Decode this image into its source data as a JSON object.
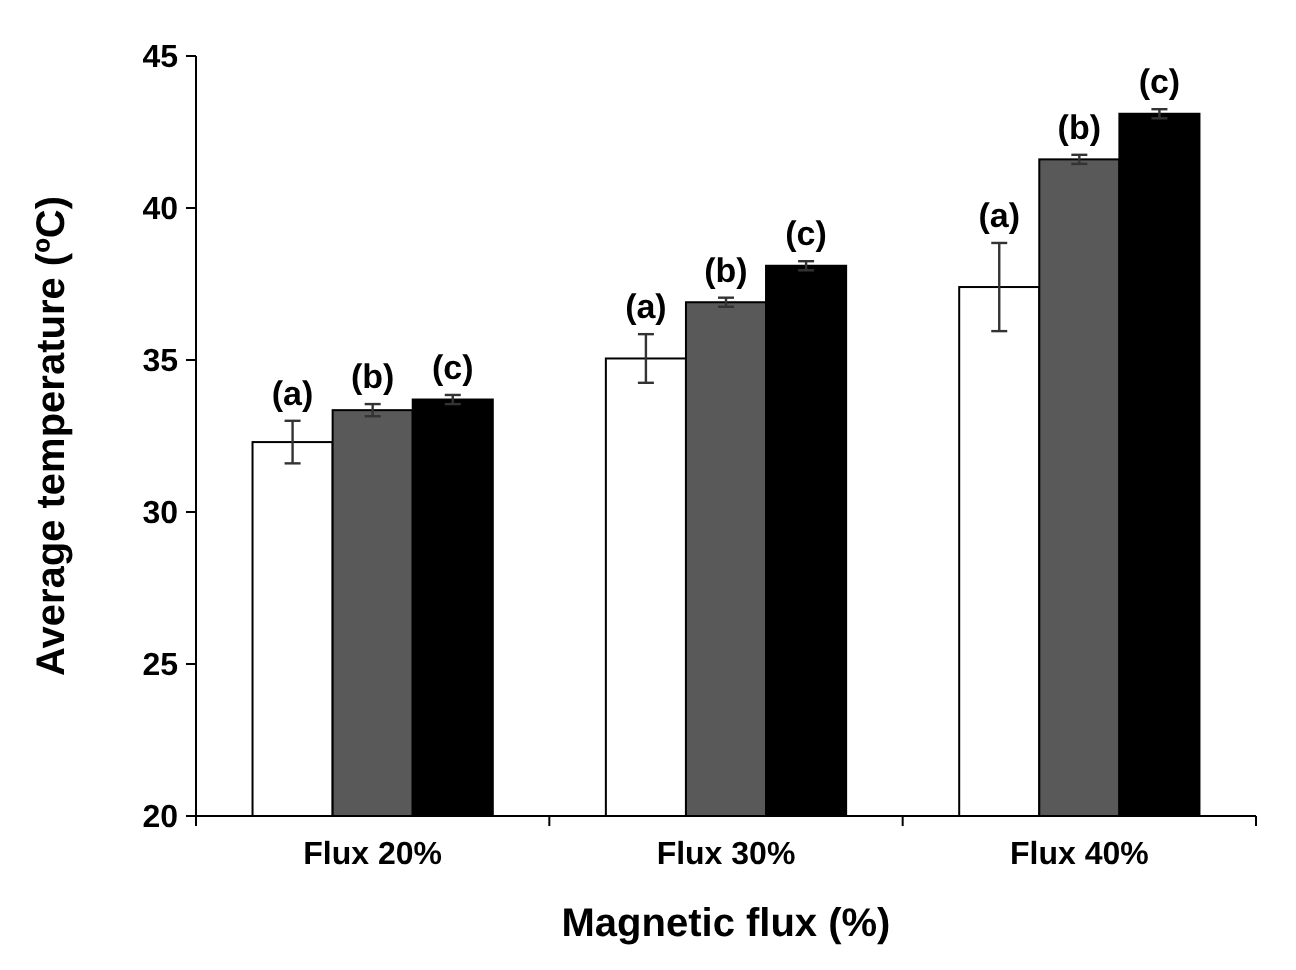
{
  "chart_data": {
    "type": "bar",
    "xlabel": "Magnetic flux (%)",
    "ylabel": "Average temperature (ºC)",
    "categories": [
      "Flux 20%",
      "Flux 30%",
      "Flux 40%"
    ],
    "series": [
      {
        "color": "#ffffff",
        "values": [
          32.3,
          35.05,
          37.4
        ],
        "errors": [
          0.7,
          0.8,
          1.45
        ],
        "value_labels": [
          "(a)",
          "(a)",
          "(a)"
        ]
      },
      {
        "color": "#595959",
        "values": [
          33.35,
          36.9,
          41.6
        ],
        "errors": [
          0.2,
          0.15,
          0.15
        ],
        "value_labels": [
          "(b)",
          "(b)",
          "(b)"
        ]
      },
      {
        "color": "#000000",
        "values": [
          33.7,
          38.1,
          43.1
        ],
        "errors": [
          0.15,
          0.15,
          0.15
        ],
        "value_labels": [
          "(c)",
          "(c)",
          "(c)"
        ]
      }
    ],
    "ylim": [
      20,
      45
    ],
    "yticks": [
      20,
      25,
      30,
      35,
      40,
      45
    ],
    "grid": false
  }
}
